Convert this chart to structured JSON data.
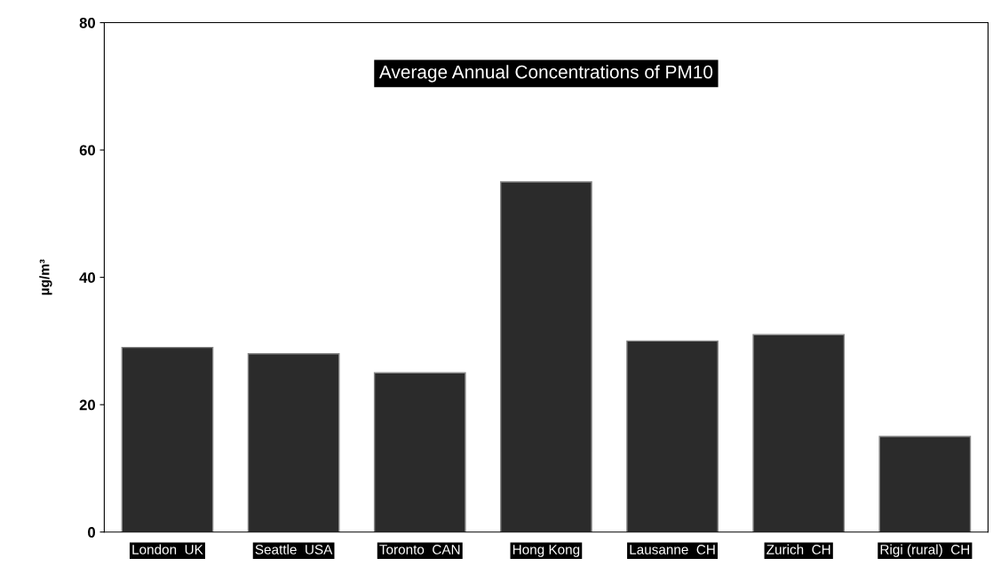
{
  "chart_data": {
    "type": "bar",
    "title": "Average Annual Concentrations of PM10",
    "ylabel": "µg/m³",
    "categories": [
      "London  UK",
      "Seattle  USA",
      "Toronto  CAN",
      "Hong Kong",
      "Lausanne  CH",
      "Zurich  CH",
      "Rigi (rural)  CH"
    ],
    "values": [
      29,
      28,
      25,
      55,
      30,
      31,
      15
    ],
    "color": "#2b2b2b",
    "ylim": [
      0,
      80
    ],
    "yticks": [
      0,
      20,
      40,
      60,
      80
    ],
    "grid": false,
    "legend": false
  }
}
